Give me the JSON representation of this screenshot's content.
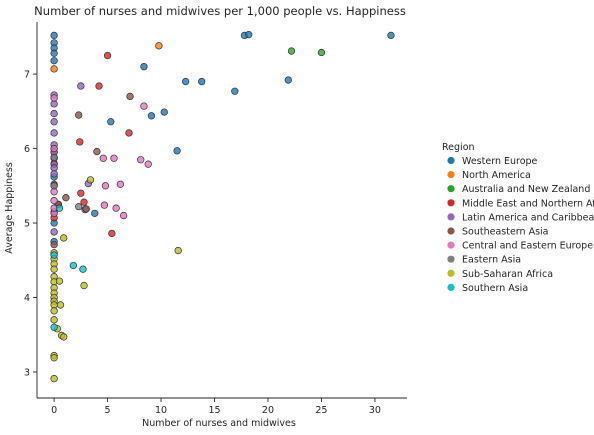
{
  "chart_data": {
    "type": "scatter",
    "title": "Number of nurses and midwives per 1,000 people vs. Happiness",
    "xlabel": "Number of nurses and midwives",
    "ylabel": "Average Happiness",
    "xlim": [
      -1.6,
      33
    ],
    "ylim": [
      2.65,
      7.7
    ],
    "xticks": [
      "0",
      "5",
      "10",
      "15",
      "20",
      "25",
      "30"
    ],
    "yticks": [
      "3",
      "4",
      "5",
      "6",
      "7"
    ],
    "grid": false,
    "legend": {
      "title": "Region",
      "placement": "right",
      "entries": [
        {
          "name": "Western Europe",
          "color": "#1f77b4"
        },
        {
          "name": "North America",
          "color": "#ff7f0e"
        },
        {
          "name": "Australia and New Zealand",
          "color": "#2ca02c"
        },
        {
          "name": "Middle East and Northern Africa",
          "color": "#d62728"
        },
        {
          "name": "Latin America and Caribbean",
          "color": "#9467bd"
        },
        {
          "name": "Southeastern Asia",
          "color": "#8c564b"
        },
        {
          "name": "Central and Eastern Europe",
          "color": "#e377c2"
        },
        {
          "name": "Eastern Asia",
          "color": "#7f7f7f"
        },
        {
          "name": "Sub-Saharan Africa",
          "color": "#bcbd22"
        },
        {
          "name": "Southern Asia",
          "color": "#17becf"
        }
      ]
    },
    "series": [
      {
        "name": "Western Europe",
        "points": [
          [
            0,
            7.52
          ],
          [
            0,
            7.42
          ],
          [
            0,
            7.35
          ],
          [
            0,
            7.28
          ],
          [
            0,
            7.18
          ],
          [
            0,
            5.88
          ],
          [
            0,
            5.62
          ],
          [
            0,
            5.0
          ],
          [
            0,
            4.75
          ],
          [
            17.8,
            7.52
          ],
          [
            18.2,
            7.53
          ],
          [
            31.5,
            7.52
          ],
          [
            8.4,
            7.1
          ],
          [
            12.3,
            6.9
          ],
          [
            13.8,
            6.9
          ],
          [
            16.9,
            6.77
          ],
          [
            21.9,
            6.92
          ],
          [
            9.1,
            6.44
          ],
          [
            10.3,
            6.49
          ],
          [
            5.3,
            6.36
          ],
          [
            11.5,
            5.97
          ],
          [
            3.8,
            5.13
          ]
        ]
      },
      {
        "name": "North America",
        "points": [
          [
            9.8,
            7.38
          ],
          [
            0,
            7.07
          ]
        ]
      },
      {
        "name": "Australia and New Zealand",
        "points": [
          [
            22.2,
            7.31
          ],
          [
            25,
            7.29
          ]
        ]
      },
      {
        "name": "Middle East and Northern Africa",
        "points": [
          [
            5,
            7.25
          ],
          [
            4.2,
            6.84
          ],
          [
            7,
            6.21
          ],
          [
            2.4,
            6.09
          ],
          [
            0,
            6.0
          ],
          [
            0,
            5.95
          ],
          [
            0,
            5.8
          ],
          [
            0,
            5.52
          ],
          [
            0,
            5.15
          ],
          [
            0,
            5.07
          ],
          [
            0.4,
            5.25
          ],
          [
            2.8,
            5.28
          ],
          [
            5.4,
            4.86
          ],
          [
            2.5,
            5.4
          ]
        ]
      },
      {
        "name": "Latin America and Caribbean",
        "points": [
          [
            2.5,
            6.84
          ],
          [
            0,
            6.72
          ],
          [
            0,
            6.6
          ],
          [
            0,
            6.47
          ],
          [
            0,
            6.36
          ],
          [
            0,
            6.21
          ],
          [
            0,
            6.05
          ],
          [
            0,
            5.95
          ],
          [
            0,
            5.87
          ],
          [
            0,
            5.79
          ],
          [
            0,
            5.74
          ],
          [
            0,
            5.66
          ],
          [
            0,
            5.5
          ],
          [
            3.2,
            5.53
          ],
          [
            2.9,
            5.18
          ],
          [
            0,
            4.88
          ]
        ]
      },
      {
        "name": "Southeastern Asia",
        "points": [
          [
            7.1,
            6.7
          ],
          [
            2.3,
            6.45
          ],
          [
            4,
            5.96
          ],
          [
            1.1,
            5.34
          ],
          [
            0.4,
            5.25
          ],
          [
            3,
            5.19
          ],
          [
            0,
            4.71
          ]
        ]
      },
      {
        "name": "Central and Eastern Europe",
        "points": [
          [
            8.4,
            6.57
          ],
          [
            0,
            6.68
          ],
          [
            0,
            6.0
          ],
          [
            4.6,
            5.87
          ],
          [
            5.6,
            5.87
          ],
          [
            8.1,
            5.85
          ],
          [
            8.8,
            5.79
          ],
          [
            6.2,
            5.52
          ],
          [
            4.8,
            5.5
          ],
          [
            0,
            5.42
          ],
          [
            4.7,
            5.24
          ],
          [
            5.8,
            5.2
          ],
          [
            6.5,
            5.1
          ],
          [
            0,
            5.13
          ],
          [
            0,
            5.2
          ],
          [
            0,
            5.3
          ]
        ]
      },
      {
        "name": "Eastern Asia",
        "points": [
          [
            2.3,
            5.22
          ],
          [
            0,
            5.5
          ],
          [
            0,
            5.88
          ]
        ]
      },
      {
        "name": "Sub-Saharan Africa",
        "points": [
          [
            3.4,
            5.58
          ],
          [
            0.9,
            4.8
          ],
          [
            11.6,
            4.63
          ],
          [
            0,
            4.6
          ],
          [
            0,
            4.52
          ],
          [
            0,
            4.45
          ],
          [
            0,
            4.38
          ],
          [
            0,
            4.28
          ],
          [
            0,
            4.21
          ],
          [
            0.5,
            4.22
          ],
          [
            0,
            4.13
          ],
          [
            0,
            4.06
          ],
          [
            0,
            4.0
          ],
          [
            0,
            3.95
          ],
          [
            0,
            3.9
          ],
          [
            0,
            3.82
          ],
          [
            0.6,
            3.9
          ],
          [
            0,
            3.7
          ],
          [
            0.3,
            3.58
          ],
          [
            0.7,
            3.49
          ],
          [
            0.9,
            3.47
          ],
          [
            0,
            3.22
          ],
          [
            0,
            3.19
          ],
          [
            2.8,
            4.16
          ],
          [
            0,
            2.91
          ]
        ]
      },
      {
        "name": "Southern Asia",
        "points": [
          [
            0.5,
            5.2
          ],
          [
            0,
            4.57
          ],
          [
            1.8,
            4.43
          ],
          [
            2.7,
            4.38
          ],
          [
            0,
            3.6
          ]
        ]
      }
    ]
  }
}
